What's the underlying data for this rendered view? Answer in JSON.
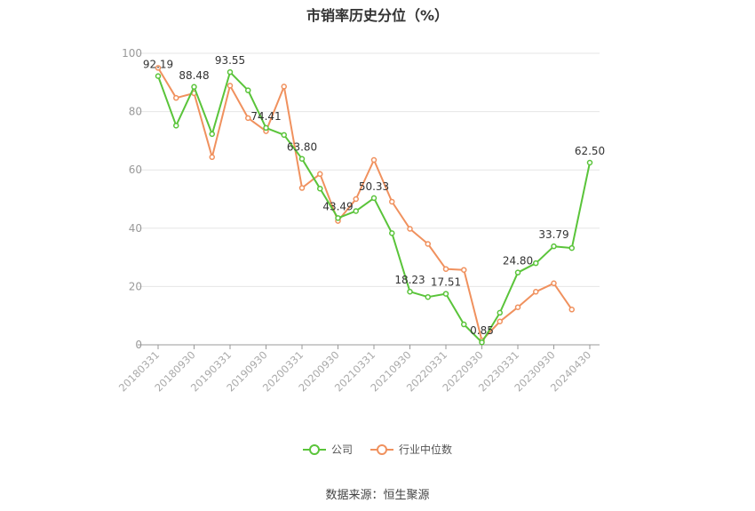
{
  "chart_data": {
    "type": "line",
    "title": "市销率历史分位（%）",
    "xlabel": "",
    "ylabel": "",
    "ylim": [
      0,
      100
    ],
    "yticks": [
      "0",
      "20",
      "40",
      "60",
      "80",
      "100"
    ],
    "xtick_labels": [
      "20180331",
      "20180930",
      "20190331",
      "20190930",
      "20200331",
      "20200930",
      "20210331",
      "20210930",
      "20220331",
      "20220930",
      "20230331",
      "20230930",
      "20240430"
    ],
    "grid": true,
    "legend_position": "bottom",
    "series": [
      {
        "name": "公司",
        "color": "#5ac43a",
        "values": [
          92.19,
          75.2,
          88.48,
          72.3,
          93.55,
          87.3,
          74.41,
          72.0,
          63.8,
          53.6,
          43.49,
          45.9,
          50.33,
          38.3,
          18.23,
          16.4,
          17.51,
          7.0,
          0.85,
          11.0,
          24.8,
          28.0,
          33.79,
          33.2,
          62.5
        ],
        "labels": [
          "92.19",
          "",
          "88.48",
          "",
          "93.55",
          "",
          "74.41",
          "",
          "63.80",
          "",
          "43.49",
          "",
          "50.33",
          "",
          "18.23",
          "",
          "17.51",
          "",
          "0.85",
          "",
          "24.80",
          "",
          "33.79",
          "",
          "62.50"
        ]
      },
      {
        "name": "行业中位数",
        "color": "#f0915e",
        "values": [
          95.0,
          84.7,
          86.3,
          64.4,
          88.9,
          77.8,
          73.3,
          88.6,
          53.8,
          58.6,
          42.5,
          50.0,
          63.4,
          49.1,
          39.8,
          34.6,
          26.0,
          25.7,
          1.5,
          8.0,
          12.9,
          18.2,
          21.1,
          12.1,
          null
        ]
      }
    ]
  },
  "legend": {
    "company": "公司",
    "industry": "行业中位数"
  },
  "source": "数据来源：恒生聚源"
}
